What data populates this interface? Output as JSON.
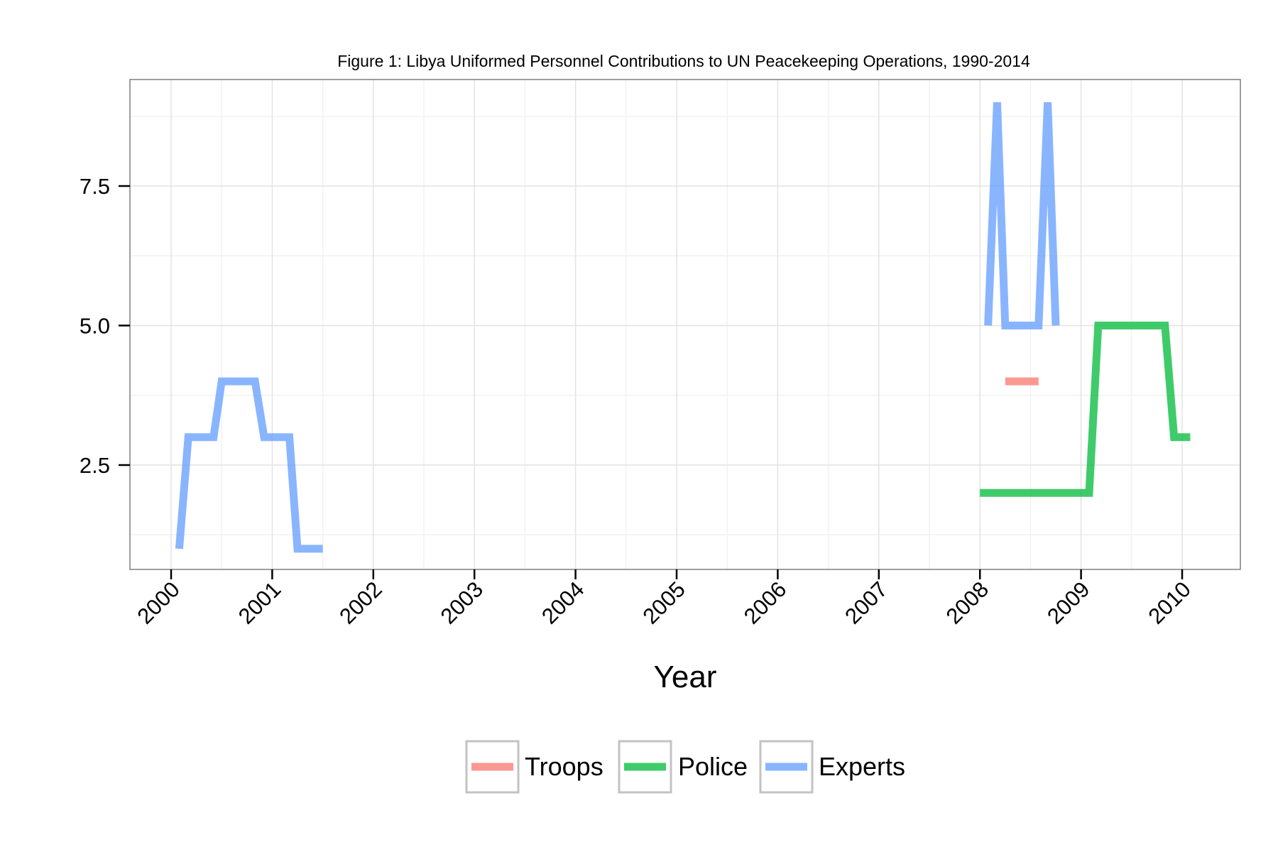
{
  "chart_data": {
    "type": "line",
    "title": "Figure 1: Libya Uniformed Personnel Contributions to UN Peacekeeping Operations, 1990-2014",
    "xlabel": "Year",
    "ylabel": "",
    "xlim": [
      1999.6,
      2010.6
    ],
    "ylim": [
      0.62,
      9.4
    ],
    "x_ticks": [
      2000,
      2001,
      2002,
      2003,
      2004,
      2005,
      2006,
      2007,
      2008,
      2009,
      2010
    ],
    "x_tick_labels": [
      "2000",
      "2001",
      "2002",
      "2003",
      "2004",
      "2005",
      "2006",
      "2007",
      "2008",
      "2009",
      "2010"
    ],
    "y_ticks": [
      2.5,
      5.0,
      7.5
    ],
    "y_tick_labels": [
      "2.5",
      "5.0",
      "7.5"
    ],
    "grid": true,
    "legend_position": "bottom",
    "series": [
      {
        "name": "Troops",
        "color": "#F8766D",
        "points": [
          [
            2008.25,
            4
          ],
          [
            2008.58,
            4
          ]
        ]
      },
      {
        "name": "Police",
        "color": "#00BA38",
        "points": [
          [
            2008.0,
            2
          ],
          [
            2009.08,
            2
          ],
          [
            2009.17,
            5
          ],
          [
            2009.83,
            5
          ],
          [
            2009.92,
            3
          ],
          [
            2010.08,
            3
          ]
        ]
      },
      {
        "name": "Experts",
        "segments": [
          [
            [
              2000.08,
              1
            ],
            [
              2000.17,
              3
            ],
            [
              2000.42,
              3
            ],
            [
              2000.5,
              4
            ],
            [
              2000.83,
              4
            ],
            [
              2000.92,
              3
            ],
            [
              2001.17,
              3
            ],
            [
              2001.25,
              1
            ],
            [
              2001.5,
              1
            ]
          ],
          [
            [
              2008.08,
              5
            ],
            [
              2008.17,
              9
            ],
            [
              2008.25,
              5
            ],
            [
              2008.58,
              5
            ],
            [
              2008.67,
              9
            ],
            [
              2008.75,
              5
            ]
          ]
        ],
        "color": "#619CFF"
      }
    ]
  }
}
